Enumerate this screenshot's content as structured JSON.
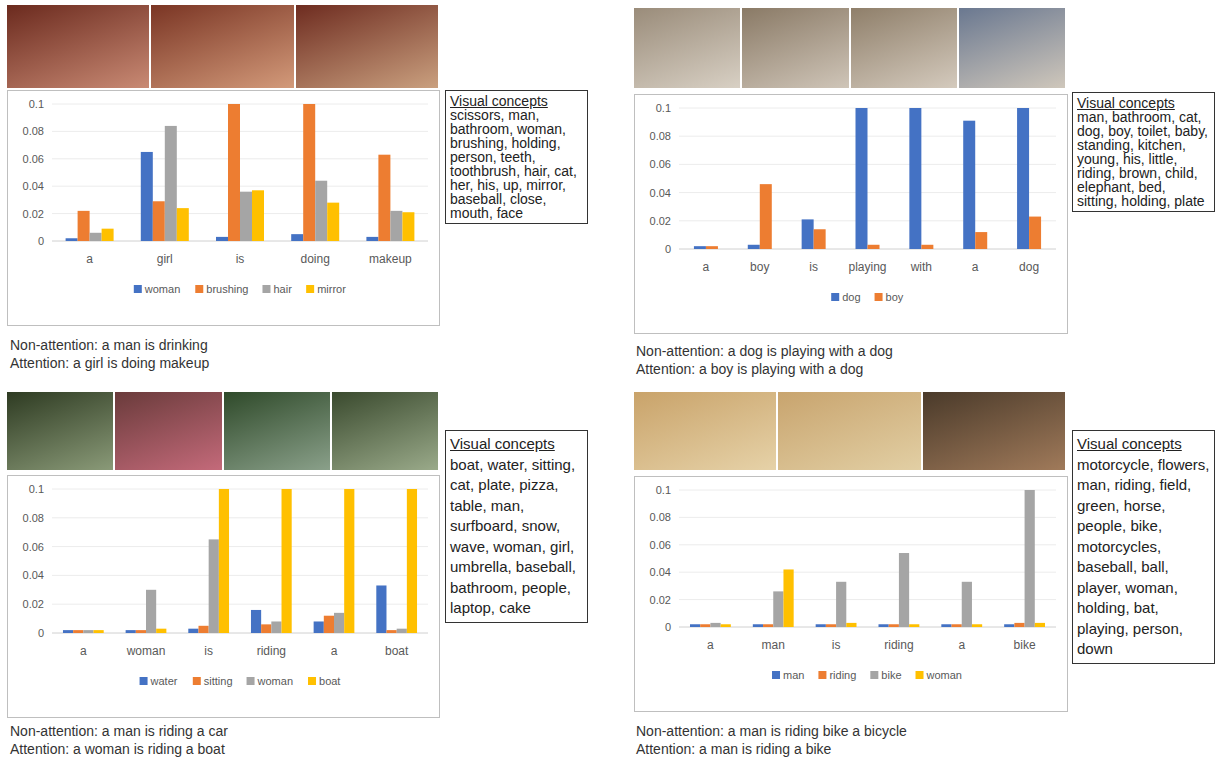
{
  "chart_data": [
    {
      "type": "bar",
      "categories": [
        "a",
        "girl",
        "is",
        "doing",
        "makeup"
      ],
      "series": [
        {
          "name": "woman",
          "color": "#4472c4",
          "values": [
            0.002,
            0.065,
            0.003,
            0.005,
            0.003
          ]
        },
        {
          "name": "brushing",
          "color": "#ed7d31",
          "values": [
            0.022,
            0.029,
            0.1,
            0.1,
            0.063
          ]
        },
        {
          "name": "hair",
          "color": "#a5a5a5",
          "values": [
            0.006,
            0.084,
            0.036,
            0.044,
            0.022
          ]
        },
        {
          "name": "mirror",
          "color": "#ffc000",
          "values": [
            0.009,
            0.024,
            0.037,
            0.028,
            0.021
          ]
        }
      ],
      "ylim": [
        0,
        0.1
      ],
      "yticks": [
        0,
        0.02,
        0.04,
        0.06,
        0.08,
        0.1
      ],
      "grid": true,
      "legend": "bottom",
      "concepts_title": "Visual concepts",
      "concepts": "scissors, man, bathroom, woman, brushing, holding, person, teeth, toothbrush, hair, cat, her, his, up, mirror, baseball, close, mouth, face",
      "captions": [
        "Non-attention: a man is drinking",
        "Attention: a girl is doing makeup"
      ]
    },
    {
      "type": "bar",
      "categories": [
        "a",
        "boy",
        "is",
        "playing",
        "with",
        "a",
        "dog"
      ],
      "series": [
        {
          "name": "dog",
          "color": "#4472c4",
          "values": [
            0.002,
            0.003,
            0.021,
            0.1,
            0.1,
            0.091,
            0.1
          ]
        },
        {
          "name": "boy",
          "color": "#ed7d31",
          "values": [
            0.002,
            0.046,
            0.014,
            0.003,
            0.003,
            0.012,
            0.023
          ]
        }
      ],
      "ylim": [
        0,
        0.1
      ],
      "yticks": [
        0,
        0.02,
        0.04,
        0.06,
        0.08,
        0.1
      ],
      "grid": true,
      "legend": "bottom",
      "concepts_title": "Visual concepts",
      "concepts": "man, bathroom, cat, dog, boy, toilet, baby, standing, kitchen, young, his, little, riding, brown, child, elephant, bed, sitting, holding, plate",
      "captions": [
        "Non-attention: a dog is playing with a dog",
        "Attention: a boy is playing with a dog"
      ]
    },
    {
      "type": "bar",
      "categories": [
        "a",
        "woman",
        "is",
        "riding",
        "a",
        "boat"
      ],
      "series": [
        {
          "name": "water",
          "color": "#4472c4",
          "values": [
            0.002,
            0.002,
            0.003,
            0.016,
            0.008,
            0.033
          ]
        },
        {
          "name": "sitting",
          "color": "#ed7d31",
          "values": [
            0.002,
            0.002,
            0.005,
            0.006,
            0.012,
            0.002
          ]
        },
        {
          "name": "woman",
          "color": "#a5a5a5",
          "values": [
            0.002,
            0.03,
            0.065,
            0.008,
            0.014,
            0.003
          ]
        },
        {
          "name": "boat",
          "color": "#ffc000",
          "values": [
            0.002,
            0.003,
            0.1,
            0.1,
            0.1,
            0.1
          ]
        }
      ],
      "ylim": [
        0,
        0.1
      ],
      "yticks": [
        0,
        0.02,
        0.04,
        0.06,
        0.08,
        0.1
      ],
      "grid": true,
      "legend": "bottom",
      "concepts_title": "Visual concepts",
      "concepts": "boat, water, sitting, cat, plate, pizza, table, man, surfboard, snow, wave, woman, girl, umbrella, baseball, bathroom, people, laptop, cake",
      "captions": [
        "Non-attention: a man is riding a car",
        "Attention: a woman is riding a boat"
      ]
    },
    {
      "type": "bar",
      "categories": [
        "a",
        "man",
        "is",
        "riding",
        "a",
        "bike"
      ],
      "series": [
        {
          "name": "man",
          "color": "#4472c4",
          "values": [
            0.002,
            0.002,
            0.002,
            0.002,
            0.002,
            0.002
          ]
        },
        {
          "name": "riding",
          "color": "#ed7d31",
          "values": [
            0.002,
            0.002,
            0.002,
            0.002,
            0.002,
            0.003
          ]
        },
        {
          "name": "bike",
          "color": "#a5a5a5",
          "values": [
            0.003,
            0.026,
            0.033,
            0.054,
            0.033,
            0.1
          ]
        },
        {
          "name": "woman",
          "color": "#ffc000",
          "values": [
            0.002,
            0.042,
            0.003,
            0.002,
            0.002,
            0.003
          ]
        }
      ],
      "ylim": [
        0,
        0.1
      ],
      "yticks": [
        0,
        0.02,
        0.04,
        0.06,
        0.08,
        0.1
      ],
      "grid": true,
      "legend": "bottom",
      "concepts_title": "Visual concepts",
      "concepts": "motorcycle, flowers, man, riding, field, green, horse, people, bike, motorcycles, baseball, ball, player, woman, holding, bat, playing, person, down",
      "captions": [
        "Non-attention: a man is riding bike a bicycle",
        "Attention: a man is riding a bike"
      ]
    }
  ]
}
